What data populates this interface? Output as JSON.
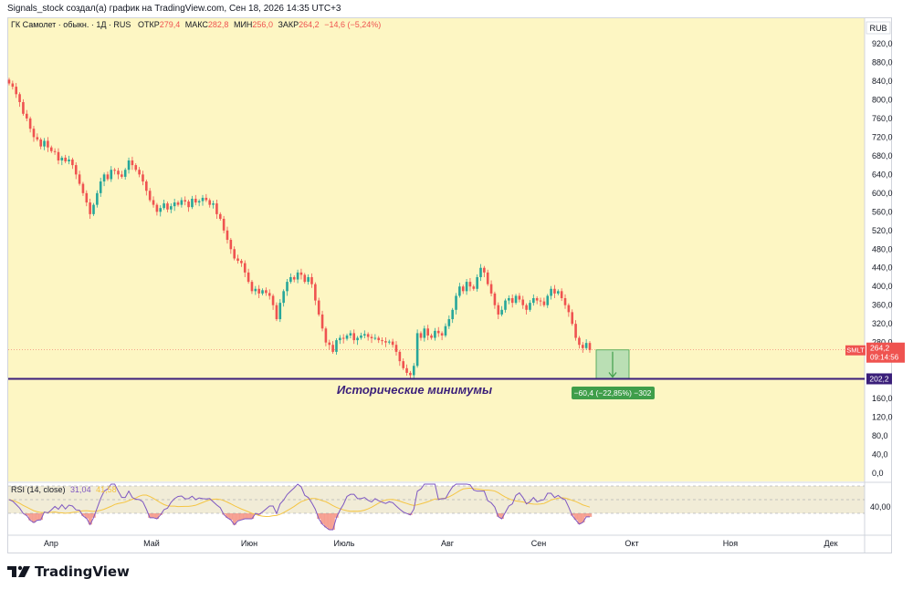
{
  "header": {
    "credit": "Signals_stock создал(а) график на TradingView.com, Сен 18, 2026 14:35 UTC+3"
  },
  "legend": {
    "symbol": "ГК Самолет · обыкн. · 1Д · RUS",
    "open_label": "ОТКР",
    "open_value": "279,4",
    "high_label": "МАКС",
    "high_value": "282,8",
    "low_label": "МИН",
    "low_value": "256,0",
    "close_label": "ЗАКР",
    "close_value": "264,2",
    "change": "−14,6 (−5,24%)"
  },
  "price_scale": {
    "currency": "RUB",
    "ticks": [
      "920,0",
      "880,0",
      "840,0",
      "800,0",
      "760,0",
      "720,0",
      "680,0",
      "640,0",
      "600,0",
      "560,0",
      "520,0",
      "480,0",
      "440,0",
      "400,0",
      "360,0",
      "320,0",
      "280,0",
      "160,0",
      "120,0",
      "80,0",
      "40,0",
      "0,0"
    ]
  },
  "price_badge": {
    "ticker": "SMLT",
    "price": "264,2",
    "timer": "09:14:56"
  },
  "level_badge": "202,2",
  "annotation": "Исторические минимумы",
  "measure_label": "−60,4 (−22,85%) −302",
  "rsi": {
    "label": "RSI (14, close)",
    "value": "31,04",
    "ma_value": "41,58",
    "tick": "40,00"
  },
  "time_axis": [
    "Апр",
    "Май",
    "Июн",
    "Июль",
    "Авг",
    "Сен",
    "Окт",
    "Ноя",
    "Дек"
  ],
  "logo_text": "TradingView",
  "colors": {
    "chart_bg": "#fdf6c3",
    "up": "#26a69a",
    "down": "#ef5350",
    "level_line": "#3a1f7a",
    "rsi_line": "#7e57c2",
    "rsi_ma": "#f5c542",
    "measure_fill": "#9fd3a8",
    "measure_badge": "#3f9e4a"
  },
  "chart_data": {
    "type": "candlestick",
    "y_range": [
      0,
      960
    ],
    "support_level": 202.2,
    "last_close": 264.2,
    "closes": [
      835,
      828,
      812,
      795,
      770,
      760,
      738,
      720,
      715,
      700,
      712,
      698,
      690,
      688,
      670,
      676,
      668,
      672,
      660,
      640,
      620,
      600,
      580,
      555,
      575,
      600,
      625,
      640,
      630,
      650,
      648,
      640,
      635,
      650,
      670,
      660,
      650,
      640,
      625,
      605,
      585,
      575,
      560,
      568,
      578,
      565,
      572,
      580,
      575,
      585,
      582,
      570,
      588,
      580,
      583,
      590,
      585,
      575,
      578,
      555,
      545,
      520,
      500,
      480,
      460,
      455,
      450,
      430,
      410,
      390,
      395,
      385,
      392,
      386,
      380,
      360,
      330,
      365,
      390,
      410,
      420,
      415,
      430,
      425,
      410,
      420,
      405,
      370,
      340,
      310,
      280,
      275,
      260,
      285,
      290,
      288,
      295,
      300,
      285,
      290,
      295,
      298,
      292,
      289,
      290,
      285,
      283,
      280,
      282,
      275,
      260,
      240,
      225,
      215,
      210,
      230,
      300,
      290,
      310,
      295,
      290,
      305,
      300,
      295,
      315,
      330,
      350,
      380,
      400,
      390,
      410,
      400,
      395,
      420,
      440,
      430,
      405,
      385,
      360,
      340,
      350,
      370,
      375,
      365,
      380,
      372,
      360,
      350,
      365,
      375,
      370,
      368,
      360,
      380,
      395,
      385,
      390,
      375,
      360,
      345,
      320,
      290,
      275,
      268,
      279,
      264
    ]
  }
}
